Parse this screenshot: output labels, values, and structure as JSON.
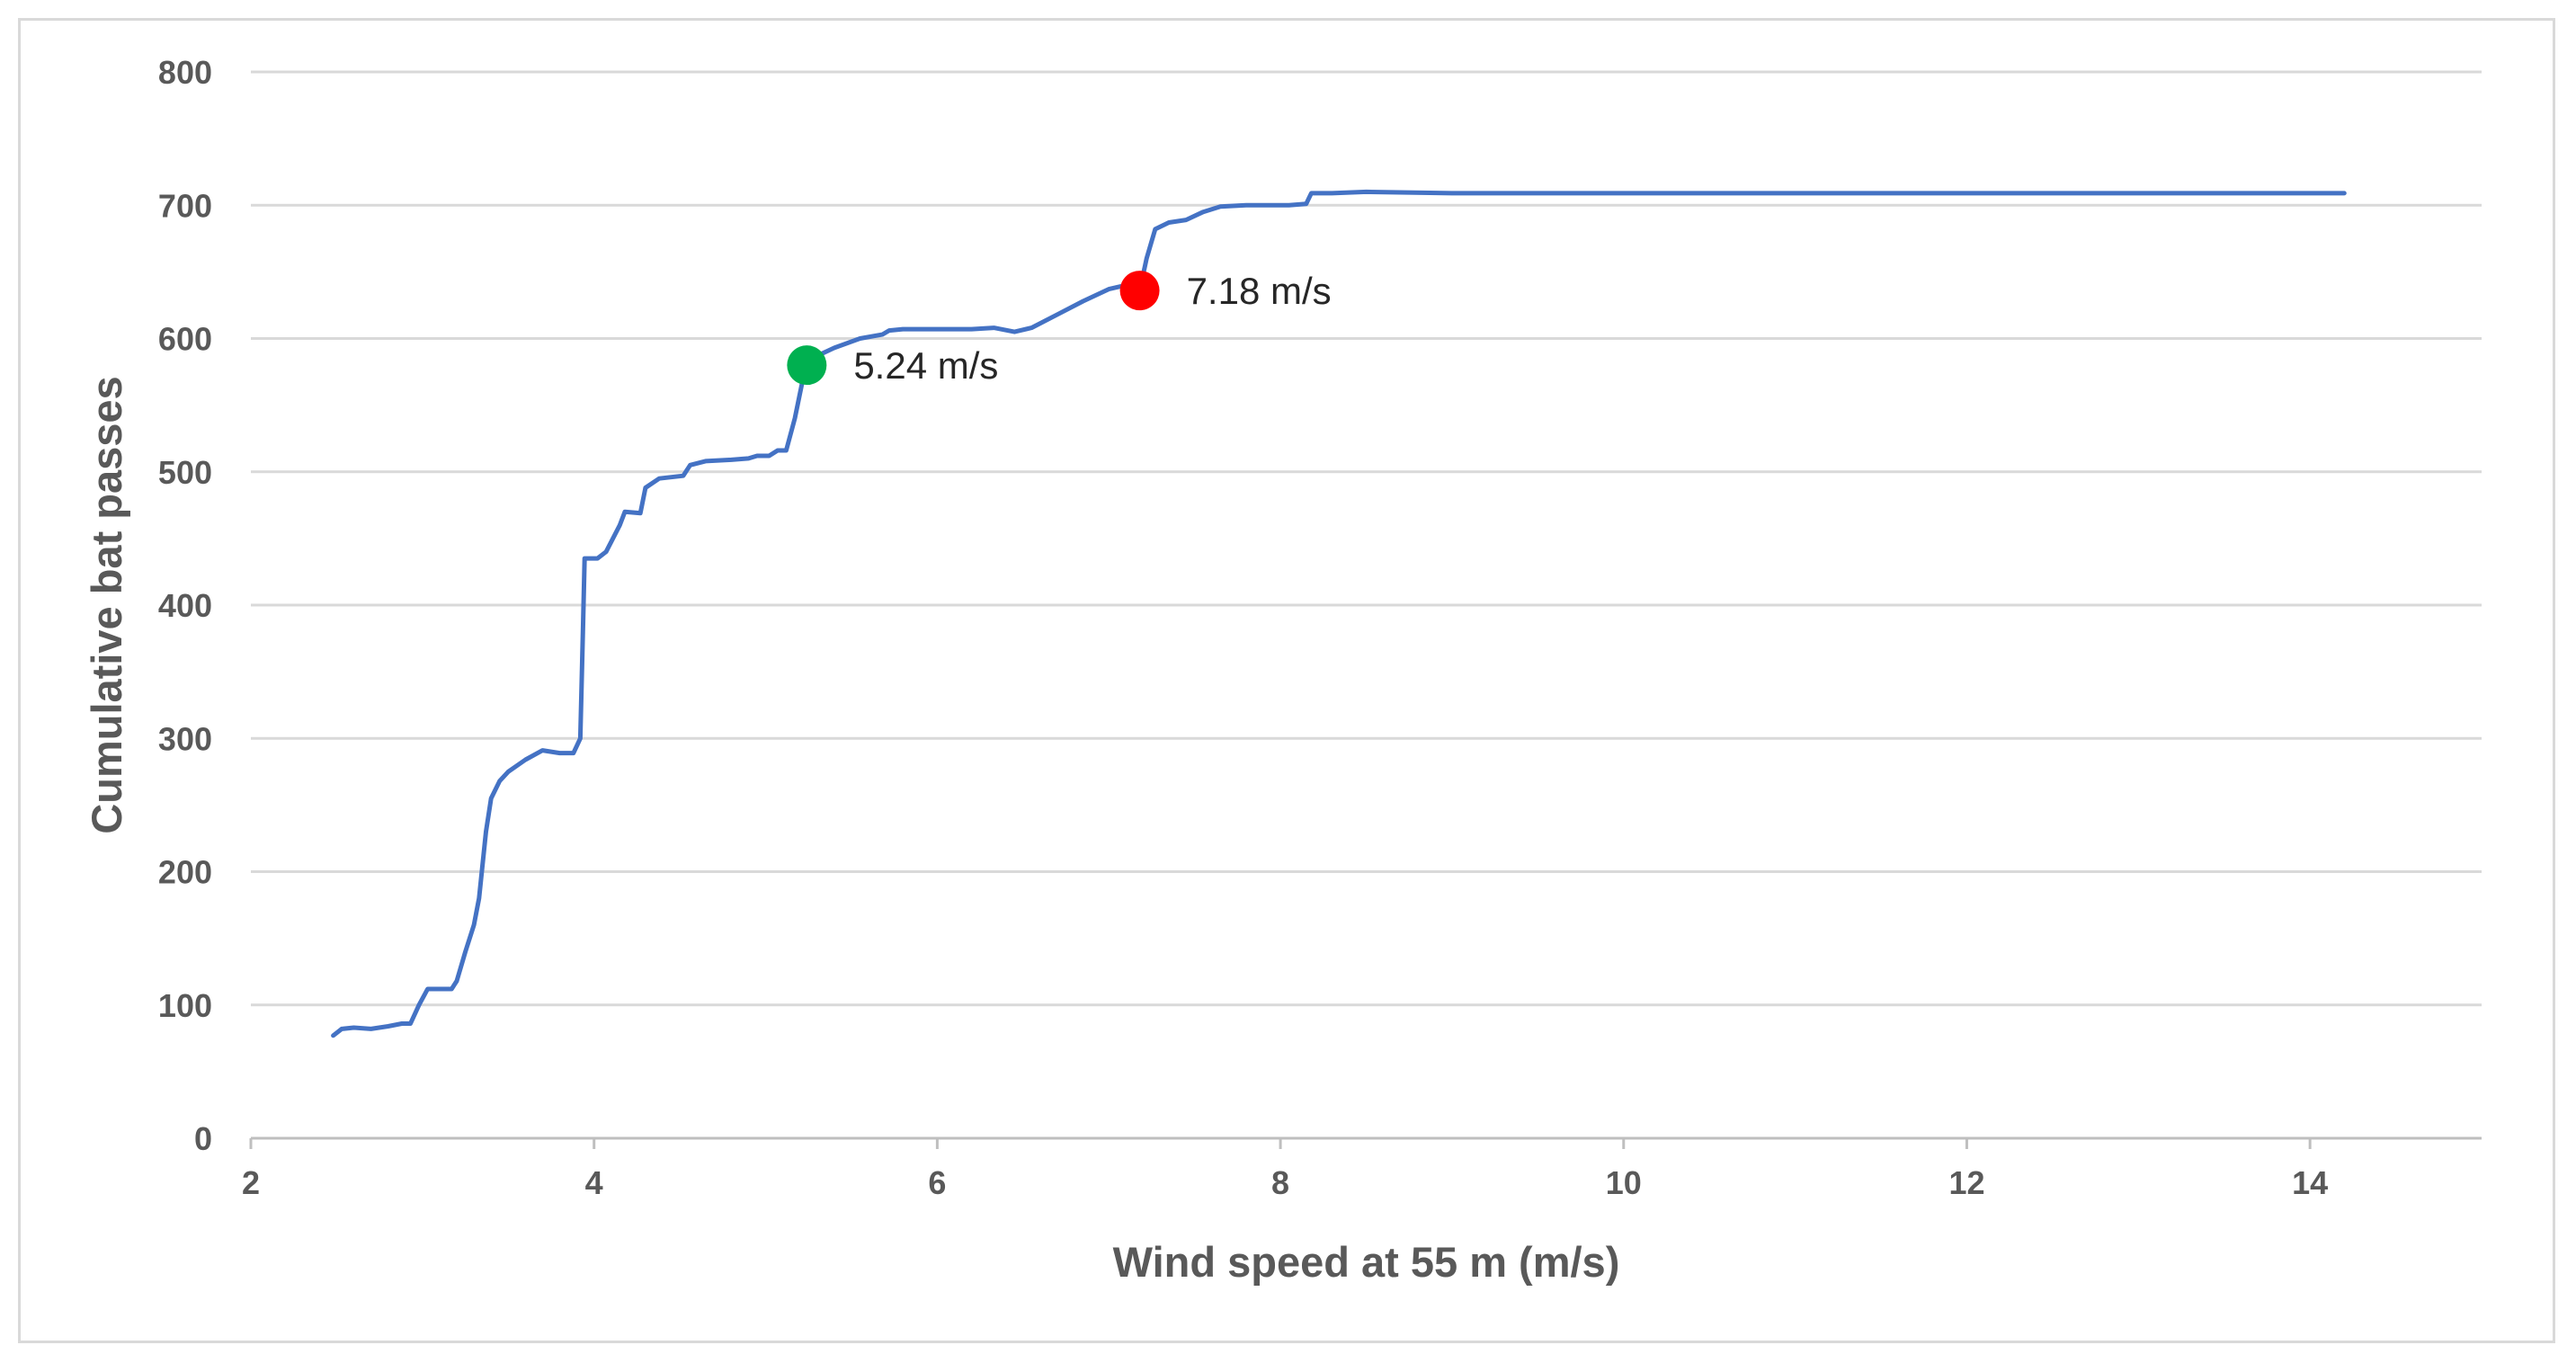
{
  "chart_data": {
    "type": "line",
    "title": "",
    "xlabel": "Wind speed at 55 m (m/s)",
    "ylabel": "Cumulative  bat passes",
    "xlim": [
      2,
      15
    ],
    "ylim": [
      0,
      800
    ],
    "xticks": [
      2,
      4,
      6,
      8,
      10,
      12,
      14
    ],
    "yticks": [
      0,
      100,
      200,
      300,
      400,
      500,
      600,
      700,
      800
    ],
    "grid": "horizontal",
    "legend": "none",
    "series": [
      {
        "color": "#4472c4",
        "points": [
          [
            2.48,
            77
          ],
          [
            2.53,
            82
          ],
          [
            2.6,
            83
          ],
          [
            2.7,
            82
          ],
          [
            2.8,
            84
          ],
          [
            2.88,
            86
          ],
          [
            2.93,
            86
          ],
          [
            2.98,
            100
          ],
          [
            3.03,
            112
          ],
          [
            3.1,
            112
          ],
          [
            3.17,
            112
          ],
          [
            3.2,
            118
          ],
          [
            3.25,
            140
          ],
          [
            3.3,
            160
          ],
          [
            3.33,
            180
          ],
          [
            3.37,
            230
          ],
          [
            3.4,
            255
          ],
          [
            3.45,
            268
          ],
          [
            3.5,
            275
          ],
          [
            3.6,
            284
          ],
          [
            3.7,
            291
          ],
          [
            3.8,
            289
          ],
          [
            3.88,
            289
          ],
          [
            3.92,
            300
          ],
          [
            3.935,
            380
          ],
          [
            3.945,
            435
          ],
          [
            4.02,
            435
          ],
          [
            4.07,
            440
          ],
          [
            4.15,
            460
          ],
          [
            4.18,
            470
          ],
          [
            4.27,
            469
          ],
          [
            4.3,
            488
          ],
          [
            4.38,
            495
          ],
          [
            4.52,
            497
          ],
          [
            4.56,
            505
          ],
          [
            4.65,
            508
          ],
          [
            4.8,
            509
          ],
          [
            4.9,
            510
          ],
          [
            4.95,
            512
          ],
          [
            5.02,
            512
          ],
          [
            5.07,
            516
          ],
          [
            5.12,
            516
          ],
          [
            5.17,
            540
          ],
          [
            5.21,
            565
          ],
          [
            5.24,
            580
          ],
          [
            5.3,
            587
          ],
          [
            5.4,
            593
          ],
          [
            5.55,
            600
          ],
          [
            5.68,
            603
          ],
          [
            5.72,
            606
          ],
          [
            5.8,
            607
          ],
          [
            6.0,
            607
          ],
          [
            6.2,
            607
          ],
          [
            6.33,
            608
          ],
          [
            6.45,
            605
          ],
          [
            6.55,
            608
          ],
          [
            6.7,
            618
          ],
          [
            6.85,
            628
          ],
          [
            7.0,
            637
          ],
          [
            7.1,
            640
          ],
          [
            7.18,
            636
          ],
          [
            7.22,
            660
          ],
          [
            7.27,
            682
          ],
          [
            7.35,
            687
          ],
          [
            7.45,
            689
          ],
          [
            7.55,
            695
          ],
          [
            7.65,
            699
          ],
          [
            7.8,
            700
          ],
          [
            8.05,
            700
          ],
          [
            8.15,
            701
          ],
          [
            8.18,
            709
          ],
          [
            8.3,
            709
          ],
          [
            8.5,
            710
          ],
          [
            9.0,
            709
          ],
          [
            10.0,
            709
          ],
          [
            12.0,
            709
          ],
          [
            14.0,
            709
          ],
          [
            14.2,
            709
          ]
        ]
      }
    ],
    "markers": [
      {
        "x": 5.24,
        "y": 580,
        "color": "#00b050",
        "label": "5.24 m/s"
      },
      {
        "x": 7.18,
        "y": 636,
        "color": "#ff0000",
        "label": "7.18 m/s"
      }
    ],
    "colors": {
      "line": "#4472c4",
      "grid": "#d9d9d9",
      "axis": "#bfbfbf",
      "text": "#595959",
      "annotation_text": "#262626"
    }
  }
}
